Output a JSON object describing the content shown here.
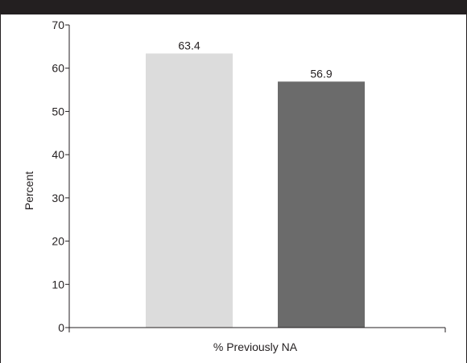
{
  "chart_data": {
    "type": "bar",
    "title": "",
    "xlabel": "",
    "ylabel": "Percent",
    "categories": [
      "% Previously NA"
    ],
    "series": [
      {
        "values": [
          63.4
        ],
        "color": "#dcdcdc"
      },
      {
        "values": [
          56.9
        ],
        "color": "#6b6b6b"
      }
    ],
    "data_labels": [
      "63.4",
      "56.9"
    ],
    "ylim": [
      0,
      70
    ],
    "yticks": [
      0,
      10,
      20,
      30,
      40,
      50,
      60,
      70
    ],
    "ytick_labels": [
      "0",
      "10",
      "20",
      "30",
      "40",
      "50",
      "60",
      "70"
    ],
    "grid": false,
    "legend": "none"
  }
}
